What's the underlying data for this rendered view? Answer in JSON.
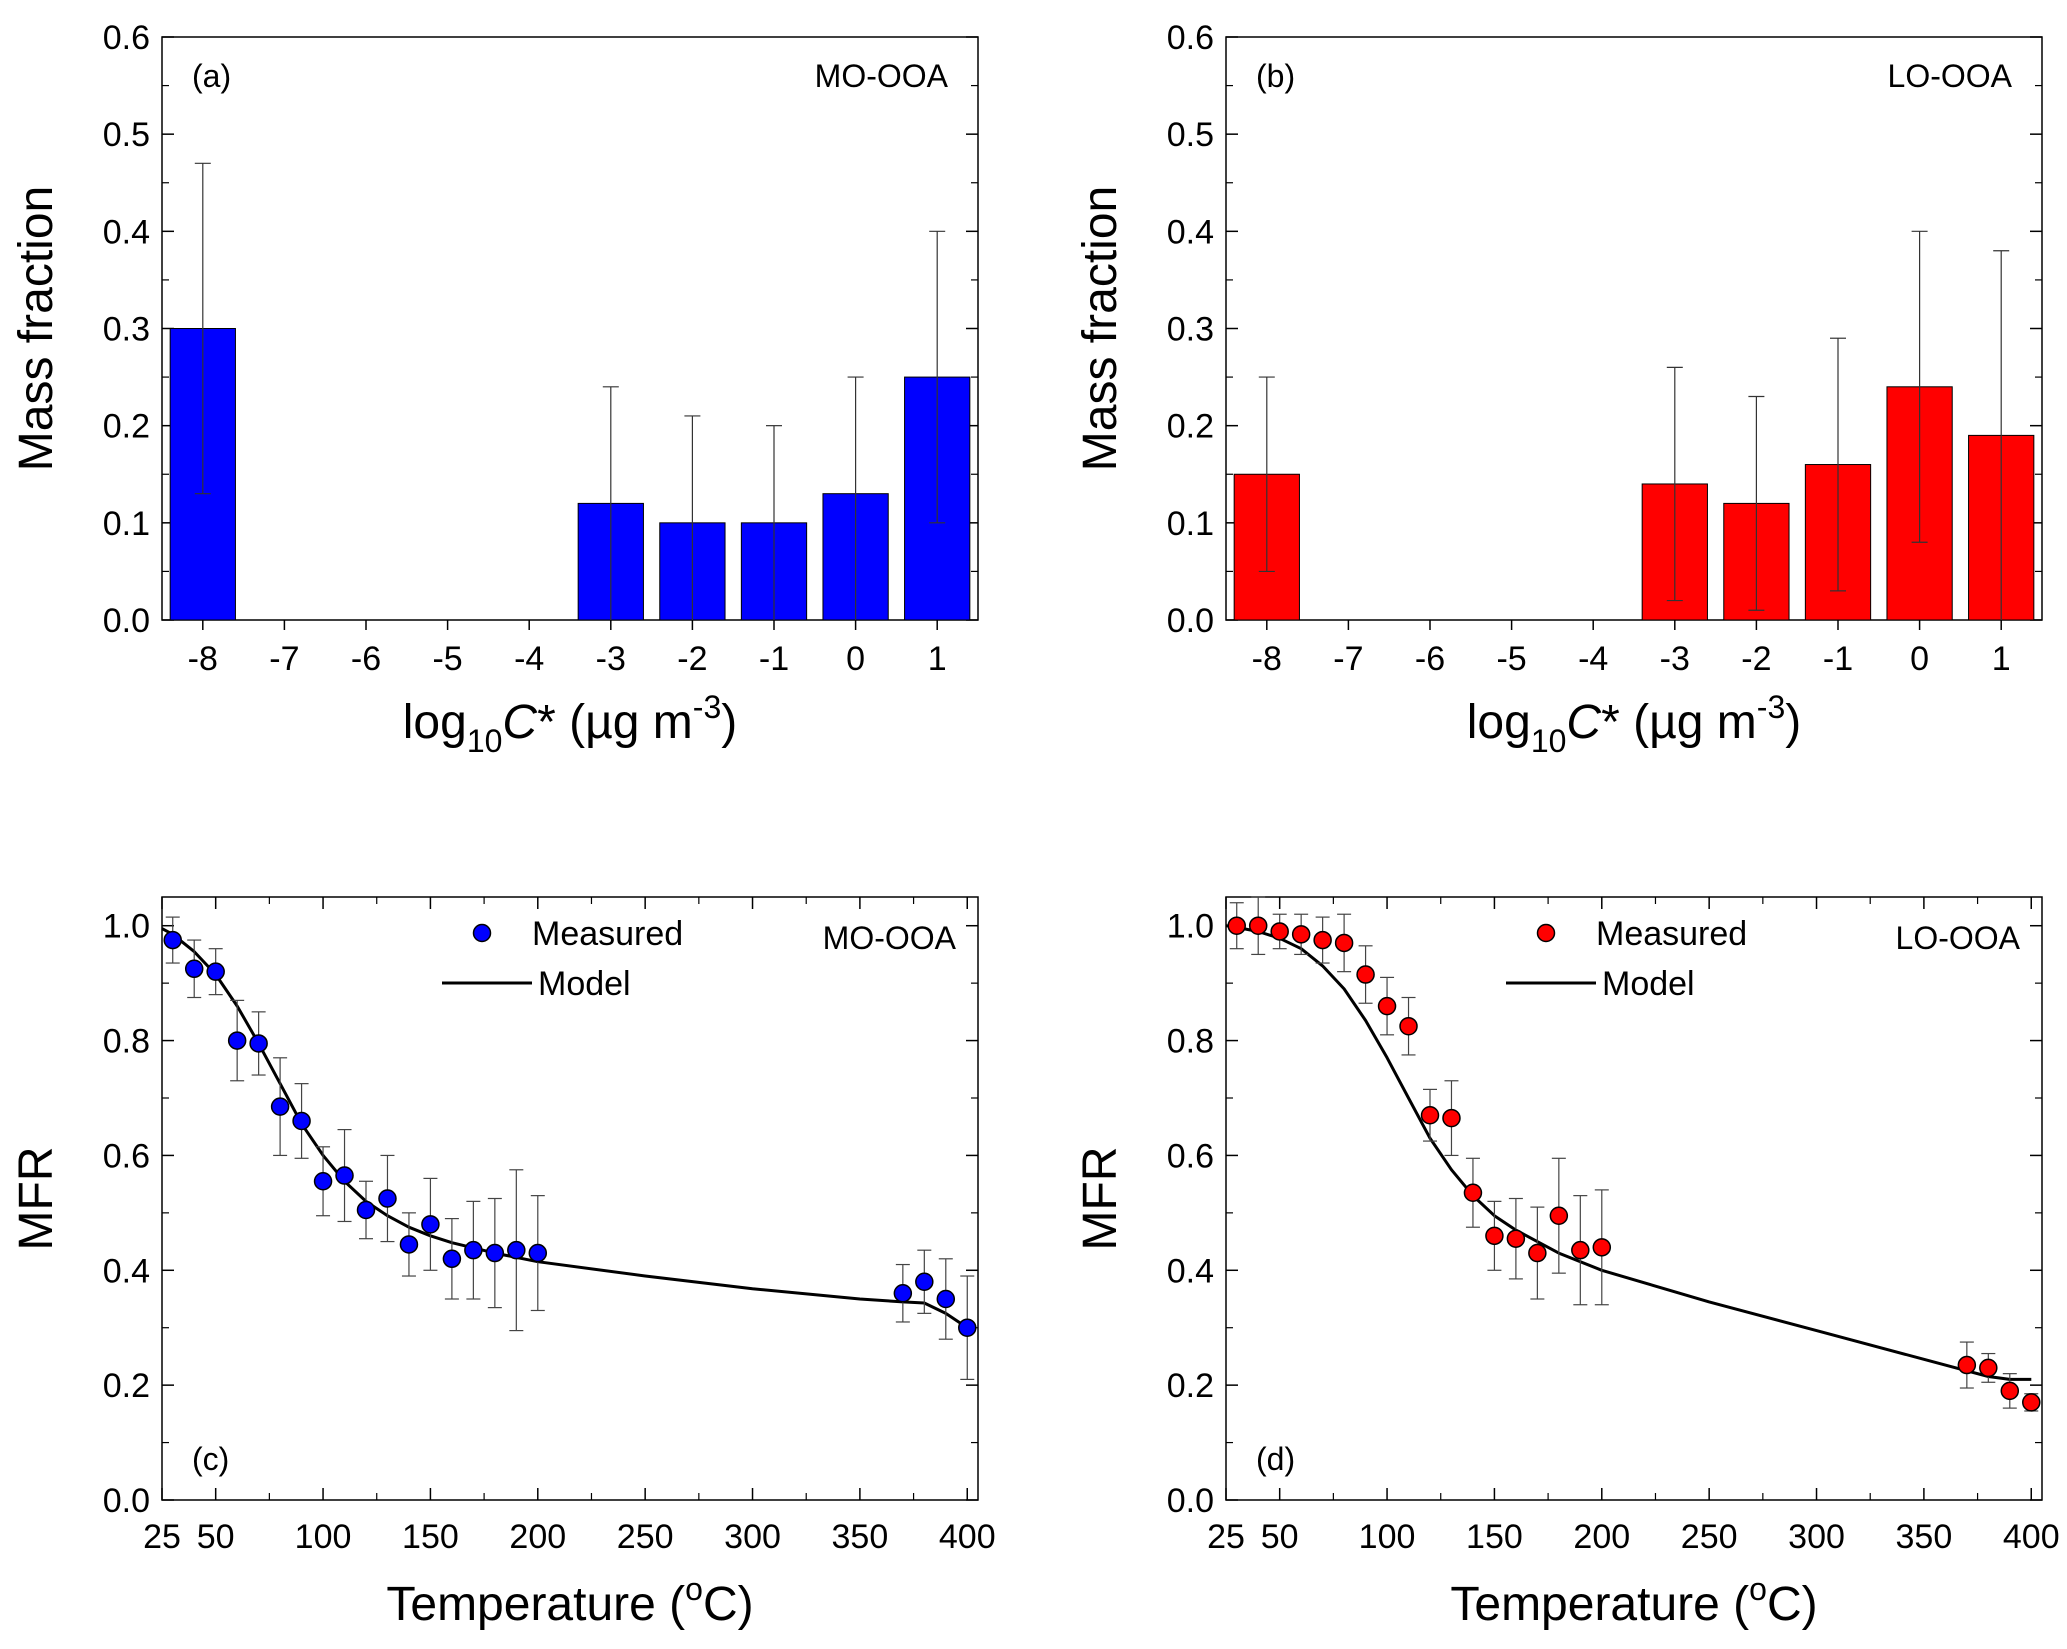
{
  "chart_data": [
    {
      "id": "a",
      "type": "bar",
      "panel_label": "(a)",
      "title": "MO-OOA",
      "color": "#0000FF",
      "categories": [
        "-8",
        "-7",
        "-6",
        "-5",
        "-4",
        "-3",
        "-2",
        "-1",
        "0",
        "1"
      ],
      "values": [
        0.3,
        0,
        0,
        0,
        0,
        0.12,
        0.1,
        0.1,
        0.13,
        0.25
      ],
      "error_low": [
        0.13,
        null,
        null,
        null,
        null,
        0.0,
        0.0,
        0.0,
        0.0,
        0.1
      ],
      "error_high": [
        0.47,
        null,
        null,
        null,
        null,
        0.24,
        0.21,
        0.2,
        0.25,
        0.4
      ],
      "ylabel": "Mass fraction",
      "xlabel": "log10C* (µg m-3)",
      "xlabel_parts": {
        "log": "log",
        "sub": "10",
        "var": "C",
        "star": "*",
        "unit": " (µg m",
        "sup": "-3",
        "close": ")"
      },
      "ylim": [
        0,
        0.6
      ],
      "yticks": [
        "0.0",
        "0.1",
        "0.2",
        "0.3",
        "0.4",
        "0.5",
        "0.6"
      ]
    },
    {
      "id": "b",
      "type": "bar",
      "panel_label": "(b)",
      "title": "LO-OOA",
      "color": "#FF0000",
      "categories": [
        "-8",
        "-7",
        "-6",
        "-5",
        "-4",
        "-3",
        "-2",
        "-1",
        "0",
        "1"
      ],
      "values": [
        0.15,
        0,
        0,
        0,
        0,
        0.14,
        0.12,
        0.16,
        0.24,
        0.19
      ],
      "error_low": [
        0.05,
        null,
        null,
        null,
        null,
        0.02,
        0.01,
        0.03,
        0.08,
        0.0
      ],
      "error_high": [
        0.25,
        null,
        null,
        null,
        null,
        0.26,
        0.23,
        0.29,
        0.4,
        0.38
      ],
      "ylabel": "Mass fraction",
      "xlabel": "log10C* (µg m-3)",
      "xlabel_parts": {
        "log": "log",
        "sub": "10",
        "var": "C",
        "star": "*",
        "unit": " (µg m",
        "sup": "-3",
        "close": ")"
      },
      "ylim": [
        0,
        0.6
      ],
      "yticks": [
        "0.0",
        "0.1",
        "0.2",
        "0.3",
        "0.4",
        "0.5",
        "0.6"
      ]
    },
    {
      "id": "c",
      "type": "scatter",
      "panel_label": "(c)",
      "title": "MO-OOA",
      "color": "#0000FF",
      "legend": {
        "measured": "Measured",
        "model": "Model"
      },
      "measured": {
        "x": [
          30,
          40,
          50,
          60,
          70,
          80,
          90,
          100,
          110,
          120,
          130,
          140,
          150,
          160,
          170,
          180,
          190,
          200,
          370,
          380,
          390,
          400
        ],
        "y": [
          0.975,
          0.925,
          0.92,
          0.8,
          0.795,
          0.685,
          0.66,
          0.555,
          0.565,
          0.505,
          0.525,
          0.445,
          0.48,
          0.42,
          0.435,
          0.43,
          0.435,
          0.43,
          0.36,
          0.38,
          0.35,
          0.3
        ],
        "err": [
          0.04,
          0.05,
          0.04,
          0.07,
          0.055,
          0.085,
          0.065,
          0.06,
          0.08,
          0.05,
          0.075,
          0.055,
          0.08,
          0.07,
          0.085,
          0.095,
          0.14,
          0.1,
          0.05,
          0.055,
          0.07,
          0.09
        ]
      },
      "model": {
        "x": [
          25,
          30,
          40,
          50,
          60,
          70,
          80,
          90,
          100,
          110,
          120,
          130,
          140,
          150,
          160,
          180,
          200,
          250,
          300,
          350,
          370,
          380,
          390,
          400
        ],
        "y": [
          0.995,
          0.985,
          0.955,
          0.915,
          0.86,
          0.795,
          0.725,
          0.655,
          0.6,
          0.555,
          0.52,
          0.495,
          0.475,
          0.46,
          0.448,
          0.43,
          0.415,
          0.39,
          0.368,
          0.35,
          0.345,
          0.343,
          0.325,
          0.3
        ]
      },
      "ylabel": "MFR",
      "xlabel": "Temperature (oC)",
      "xlabel_parts": {
        "main": "Temperature (",
        "sup": "o",
        "unit": "C)"
      },
      "xlim": [
        25,
        405
      ],
      "xticks": [
        25,
        50,
        100,
        150,
        200,
        250,
        300,
        350,
        400
      ],
      "ylim": [
        0,
        1.05
      ],
      "yticks": [
        "0.0",
        "0.2",
        "0.4",
        "0.6",
        "0.8",
        "1.0"
      ]
    },
    {
      "id": "d",
      "type": "scatter",
      "panel_label": "(d)",
      "title": "LO-OOA",
      "color": "#FF0000",
      "legend": {
        "measured": "Measured",
        "model": "Model"
      },
      "measured": {
        "x": [
          30,
          40,
          50,
          60,
          70,
          80,
          90,
          100,
          110,
          120,
          130,
          140,
          150,
          160,
          170,
          180,
          190,
          200,
          370,
          380,
          390,
          400
        ],
        "y": [
          1.0,
          1.0,
          0.99,
          0.985,
          0.975,
          0.97,
          0.915,
          0.86,
          0.825,
          0.67,
          0.665,
          0.535,
          0.46,
          0.455,
          0.43,
          0.495,
          0.435,
          0.44,
          0.235,
          0.23,
          0.19,
          0.17
        ],
        "err": [
          0.04,
          0.05,
          0.03,
          0.035,
          0.04,
          0.05,
          0.05,
          0.05,
          0.05,
          0.045,
          0.065,
          0.06,
          0.06,
          0.07,
          0.08,
          0.1,
          0.095,
          0.1,
          0.04,
          0.025,
          0.03,
          0.015
        ]
      },
      "model": {
        "x": [
          25,
          30,
          40,
          50,
          60,
          70,
          80,
          90,
          100,
          110,
          120,
          130,
          140,
          150,
          160,
          180,
          200,
          250,
          300,
          350,
          370,
          380,
          390,
          400
        ],
        "y": [
          1.0,
          0.997,
          0.99,
          0.978,
          0.96,
          0.93,
          0.89,
          0.835,
          0.77,
          0.7,
          0.63,
          0.575,
          0.53,
          0.495,
          0.47,
          0.43,
          0.4,
          0.345,
          0.295,
          0.245,
          0.225,
          0.215,
          0.21,
          0.21
        ]
      },
      "ylabel": "MFR",
      "xlabel": "Temperature (oC)",
      "xlabel_parts": {
        "main": "Temperature (",
        "sup": "o",
        "unit": "C)"
      },
      "xlim": [
        25,
        405
      ],
      "xticks": [
        25,
        50,
        100,
        150,
        200,
        250,
        300,
        350,
        400
      ],
      "ylim": [
        0,
        1.05
      ],
      "yticks": [
        "0.0",
        "0.2",
        "0.4",
        "0.6",
        "0.8",
        "1.0"
      ]
    }
  ]
}
